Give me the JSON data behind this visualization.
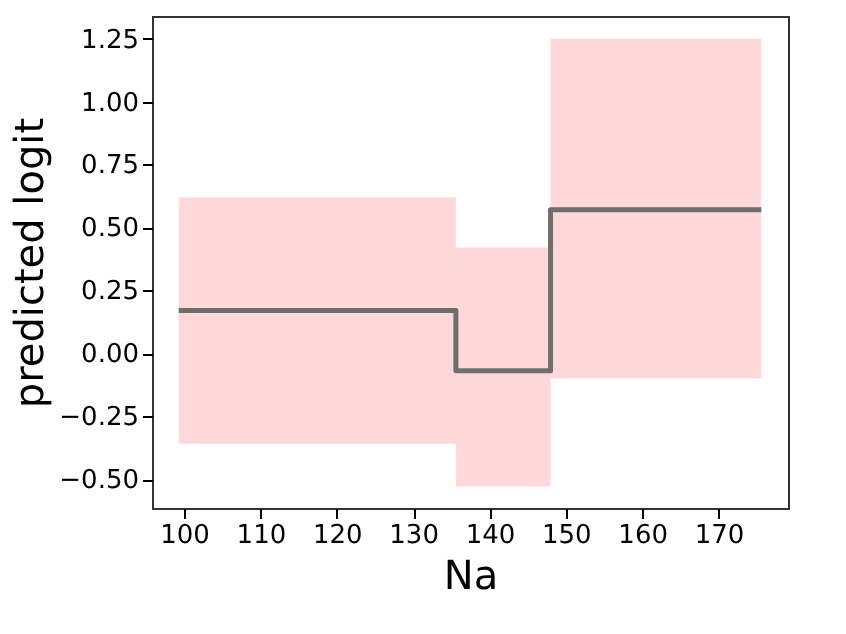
{
  "chart_data": {
    "type": "step",
    "xlabel": "Na",
    "ylabel": "predicted logit",
    "series": [
      {
        "color": "#6e6e6e",
        "x": [
          99.3,
          135.6,
          148.0,
          175.6
        ],
        "values": [
          0.17,
          -0.07,
          0.57,
          0.57
        ],
        "lower": [
          -0.36,
          -0.53,
          -0.1,
          -0.1
        ],
        "upper": [
          0.62,
          0.42,
          1.25,
          1.25
        ]
      }
    ],
    "xlim": [
      95.8,
      179.1
    ],
    "xticks": [
      100,
      110,
      120,
      130,
      140,
      150,
      160,
      170
    ],
    "ylim": [
      -0.615,
      1.34
    ],
    "yticks": [
      {
        "value": -0.5,
        "label": "−0.50"
      },
      {
        "value": -0.25,
        "label": "−0.25"
      },
      {
        "value": 0,
        "label": "0.00"
      },
      {
        "value": 0.25,
        "label": "0.25"
      },
      {
        "value": 0.5,
        "label": "0.50"
      },
      {
        "value": 0.75,
        "label": "0.75"
      },
      {
        "value": 1,
        "label": "1.00"
      },
      {
        "value": 1.25,
        "label": "1.25"
      }
    ],
    "grid": false
  }
}
